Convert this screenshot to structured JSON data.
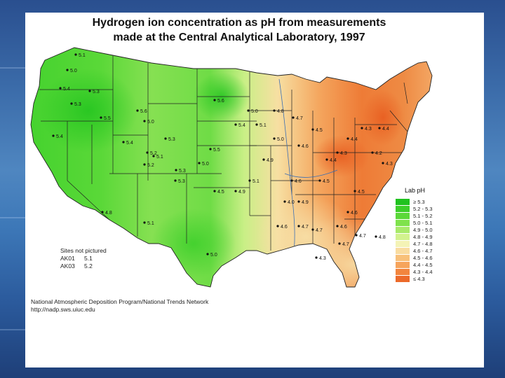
{
  "title": {
    "line1": "Hydrogen ion concentration as pH from measurements",
    "line2": "made at the Central Analytical Laboratory, 1997"
  },
  "legend": {
    "title": "Lab pH",
    "entries": [
      {
        "label": "≥ 5.3",
        "color": "#1fc21f"
      },
      {
        "label": "5.2 - 5.3",
        "color": "#3ccf2a"
      },
      {
        "label": "5.1 - 5.2",
        "color": "#5ad838"
      },
      {
        "label": "5.0 - 5.1",
        "color": "#7fe24c"
      },
      {
        "label": "4.9 - 5.0",
        "color": "#a8ea6a"
      },
      {
        "label": "4.8 - 4.9",
        "color": "#d2f28e"
      },
      {
        "label": "4.7 - 4.8",
        "color": "#f4f3b6"
      },
      {
        "label": "4.6 - 4.7",
        "color": "#f9dca0"
      },
      {
        "label": "4.5 - 4.6",
        "color": "#f8c07a"
      },
      {
        "label": "4.4 - 4.5",
        "color": "#f6a45c"
      },
      {
        "label": "4.3 - 4.4",
        "color": "#f2853e"
      },
      {
        "label": "≤ 4.3",
        "color": "#ec6a2a"
      }
    ]
  },
  "sites_not_pictured": {
    "heading": "Sites not pictured",
    "items": [
      {
        "site": "AK01",
        "value": "5.1"
      },
      {
        "site": "AK03",
        "value": "5.2"
      }
    ]
  },
  "credit": {
    "line1": "National Atmospheric Deposition Program/National Trends Network",
    "line2": "http://nadp.sws.uiuc.edu"
  },
  "site_labels": [
    {
      "text": "5.1"
    },
    {
      "text": "5.0"
    },
    {
      "text": "5.4"
    },
    {
      "text": "5.3"
    },
    {
      "text": "5.3"
    },
    {
      "text": "5.4"
    },
    {
      "text": "5.5"
    },
    {
      "text": "5.6"
    },
    {
      "text": "5.0"
    },
    {
      "text": "5.6"
    },
    {
      "text": "5.4"
    },
    {
      "text": "5.1"
    },
    {
      "text": "5.2"
    },
    {
      "text": "5.3"
    },
    {
      "text": "5.5"
    },
    {
      "text": "5.4"
    },
    {
      "text": "5.0"
    },
    {
      "text": "5.1"
    },
    {
      "text": "4.9"
    },
    {
      "text": "4.8"
    },
    {
      "text": "4.7"
    },
    {
      "text": "4.5"
    },
    {
      "text": "4.4"
    },
    {
      "text": "4.3"
    },
    {
      "text": "4.6"
    },
    {
      "text": "4.6"
    },
    {
      "text": "4.5"
    },
    {
      "text": "4.4"
    },
    {
      "text": "4.3"
    },
    {
      "text": "4.4"
    },
    {
      "text": "4.2"
    },
    {
      "text": "4.3"
    },
    {
      "text": "4.5"
    },
    {
      "text": "4.6"
    },
    {
      "text": "4.7"
    },
    {
      "text": "4.8"
    },
    {
      "text": "4.9"
    },
    {
      "text": "5.1"
    },
    {
      "text": "5.0"
    },
    {
      "text": "4.0"
    },
    {
      "text": "4.6"
    },
    {
      "text": "4.7"
    },
    {
      "text": "4.7"
    },
    {
      "text": "4.6"
    },
    {
      "text": "4.7"
    },
    {
      "text": "4.9"
    },
    {
      "text": "4.3"
    },
    {
      "text": "5.0"
    },
    {
      "text": "5.1"
    },
    {
      "text": "4.8"
    },
    {
      "text": "5.3"
    },
    {
      "text": "5.2"
    },
    {
      "text": "5.3"
    },
    {
      "text": "5.0"
    },
    {
      "text": "4.5"
    }
  ]
}
